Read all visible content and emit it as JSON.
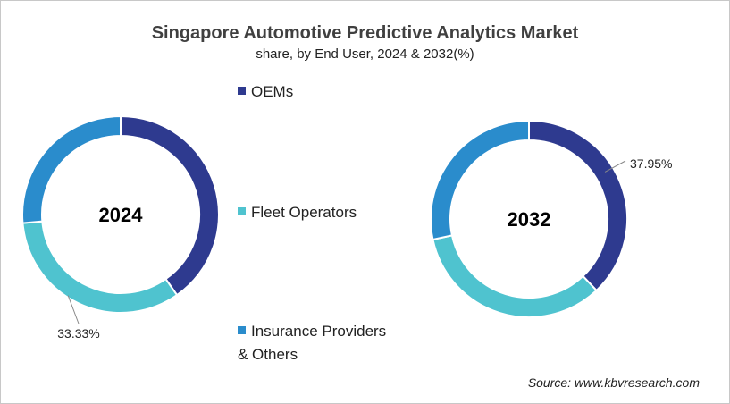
{
  "chart_data": [
    {
      "type": "donut",
      "title": "Singapore Automotive Predictive Analytics Market",
      "subtitle": "share, by End User, 2024 & 2032(%)",
      "center_label": "2024",
      "categories": [
        "OEMs",
        "Fleet Operators",
        "Insurance Providers & Others"
      ],
      "values": [
        40.28,
        33.33,
        26.39
      ],
      "data_labels": {
        "Fleet Operators": "33.33%"
      }
    },
    {
      "type": "donut",
      "center_label": "2032",
      "categories": [
        "OEMs",
        "Fleet Operators",
        "Insurance Providers & Others"
      ],
      "values": [
        37.95,
        33.7,
        28.35
      ],
      "data_labels": {
        "OEMs": "37.95%"
      }
    }
  ],
  "legend": {
    "placement": "center",
    "items": [
      {
        "label": "OEMs",
        "color": "#2e3a8f"
      },
      {
        "label": "Fleet Operators",
        "color": "#4fc3cf"
      },
      {
        "label": "Insurance Providers",
        "label2": "& Others",
        "color": "#2a8ccc"
      }
    ]
  },
  "source": "Source: www.kbvresearch.com"
}
